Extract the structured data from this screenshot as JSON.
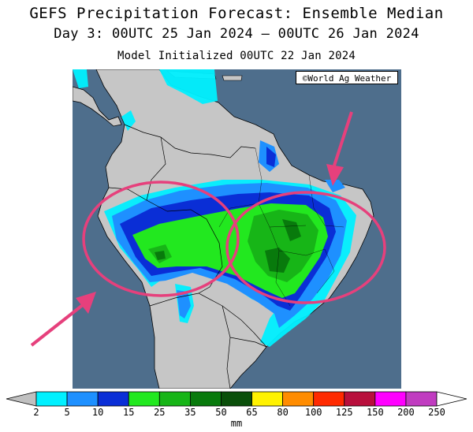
{
  "title": "GEFS Precipitation Forecast: Ensemble Median",
  "subtitle": "Day 3: 00UTC 25 Jan 2024 — 00UTC 26 Jan 2024",
  "init": "Model Initialized 00UTC 22 Jan 2024",
  "credit": "©World Ag Weather",
  "legend": {
    "unit": "mm",
    "ticks": [
      "2",
      "5",
      "10",
      "15",
      "25",
      "35",
      "50",
      "65",
      "80",
      "100",
      "125",
      "150",
      "200",
      "250"
    ],
    "bins": [
      {
        "color": "#c0c0c0"
      },
      {
        "color": "#00f0ff"
      },
      {
        "color": "#1e90ff"
      },
      {
        "color": "#0a2ed6"
      },
      {
        "color": "#22e81f"
      },
      {
        "color": "#17b517"
      },
      {
        "color": "#087a0c"
      },
      {
        "color": "#0a4f0a"
      },
      {
        "color": "#fff200"
      },
      {
        "color": "#ff8c00"
      },
      {
        "color": "#ff2a00"
      },
      {
        "color": "#b80f3c"
      },
      {
        "color": "#ff00ff"
      },
      {
        "color": "#c03cc0"
      },
      {
        "color": "#ffffff"
      }
    ]
  },
  "colors": {
    "ocean": "#4e6e8c",
    "land": "#c6c6c6",
    "highlight": "#e6407c"
  },
  "annotations": {
    "circles": 2,
    "arrows": 2
  }
}
